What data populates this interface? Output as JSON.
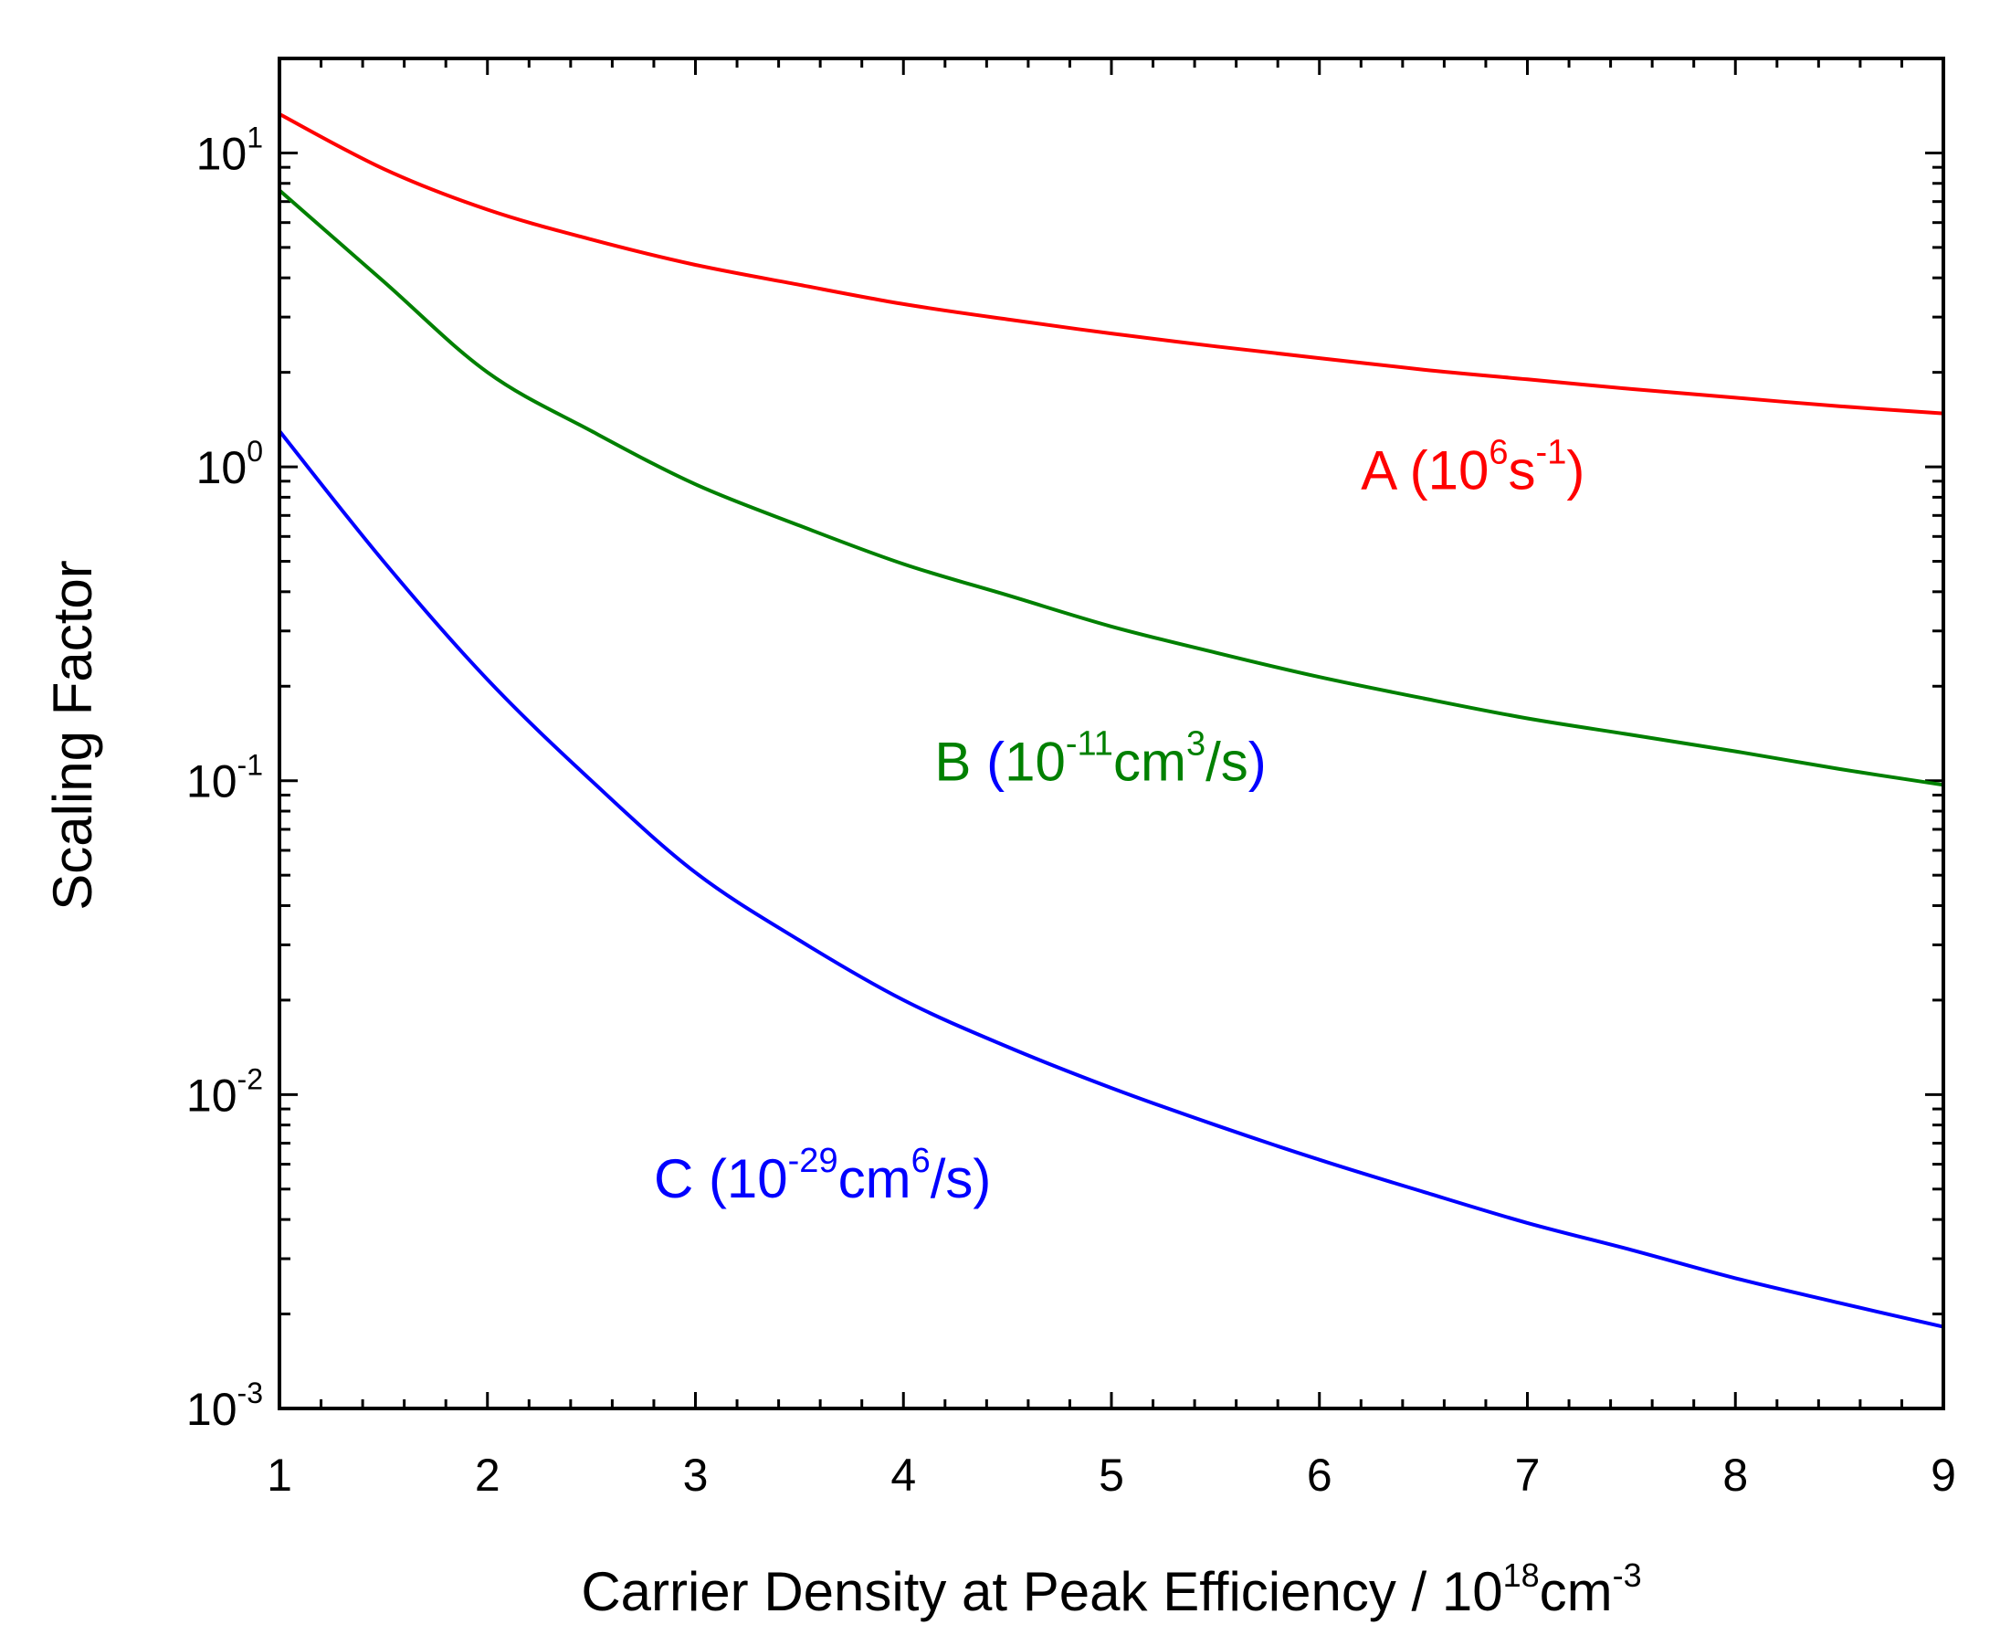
{
  "chart_data": {
    "type": "line",
    "title": "",
    "xlabel": {
      "main": "Carrier Density at Peak Efficiency / 10",
      "sup1": "18",
      "mid": "cm",
      "sup2": "-3"
    },
    "ylabel": "Scaling Factor",
    "xlim": [
      1,
      9
    ],
    "ylim": [
      0.001,
      20
    ],
    "yscale": "log",
    "grid": false,
    "x_ticks": [
      "1",
      "2",
      "3",
      "4",
      "5",
      "6",
      "7",
      "8",
      "9"
    ],
    "y_ticks": [
      {
        "value": 0.001,
        "base": "10",
        "exp": "-3"
      },
      {
        "value": 0.01,
        "base": "10",
        "exp": "-2"
      },
      {
        "value": 0.1,
        "base": "10",
        "exp": "-1"
      },
      {
        "value": 1,
        "base": "10",
        "exp": "0"
      },
      {
        "value": 10,
        "base": "10",
        "exp": "1"
      }
    ],
    "x": [
      1,
      1.5,
      2,
      2.5,
      3,
      3.5,
      4,
      4.5,
      5,
      5.5,
      6,
      6.5,
      7,
      7.5,
      8,
      8.5,
      9
    ],
    "series": [
      {
        "name": "A",
        "color": "#ff0000",
        "values": [
          13.3,
          8.9,
          6.6,
          5.3,
          4.4,
          3.8,
          3.3,
          2.95,
          2.66,
          2.42,
          2.22,
          2.04,
          1.9,
          1.77,
          1.66,
          1.56,
          1.48
        ],
        "label_parts": [
          {
            "text": "A (10",
            "color": "#ff0000"
          },
          {
            "text": "6",
            "sup": true,
            "color": "#ff0000"
          },
          {
            "text": "s",
            "color": "#ff0000"
          },
          {
            "text": "-1",
            "sup": true,
            "color": "#ff0000"
          },
          {
            "text": ")",
            "color": "#ff0000"
          }
        ],
        "label_anchor": {
          "x": 6.2,
          "y": 0.85
        }
      },
      {
        "name": "B",
        "color": "#008000",
        "values": [
          7.6,
          3.9,
          2.0,
          1.3,
          0.88,
          0.65,
          0.49,
          0.39,
          0.31,
          0.256,
          0.214,
          0.183,
          0.158,
          0.14,
          0.124,
          0.109,
          0.097
        ],
        "label_parts": [
          {
            "text": "B ",
            "color": "#008000"
          },
          {
            "text": "(",
            "color": "#0000ff"
          },
          {
            "text": "10",
            "color": "#008000"
          },
          {
            "text": "-11",
            "sup": true,
            "color": "#008000"
          },
          {
            "text": "cm",
            "color": "#008000"
          },
          {
            "text": "3",
            "sup": true,
            "color": "#008000"
          },
          {
            "text": "/s",
            "color": "#008000"
          },
          {
            "text": ")",
            "color": "#0000ff"
          }
        ],
        "label_anchor": {
          "x": 4.15,
          "y": 0.1
        }
      },
      {
        "name": "C",
        "color": "#0000ff",
        "values": [
          1.3,
          0.5,
          0.21,
          0.1,
          0.051,
          0.031,
          0.02,
          0.0142,
          0.0105,
          0.008,
          0.0062,
          0.0049,
          0.0039,
          0.0032,
          0.0026,
          0.00217,
          0.00182
        ],
        "label_parts": [
          {
            "text": "C (10",
            "color": "#0000ff"
          },
          {
            "text": "-29",
            "sup": true,
            "color": "#0000ff"
          },
          {
            "text": "cm",
            "color": "#0000ff"
          },
          {
            "text": "6",
            "sup": true,
            "color": "#0000ff"
          },
          {
            "text": "/s)",
            "color": "#0000ff"
          }
        ],
        "label_anchor": {
          "x": 2.8,
          "y": 0.0047
        }
      }
    ]
  }
}
